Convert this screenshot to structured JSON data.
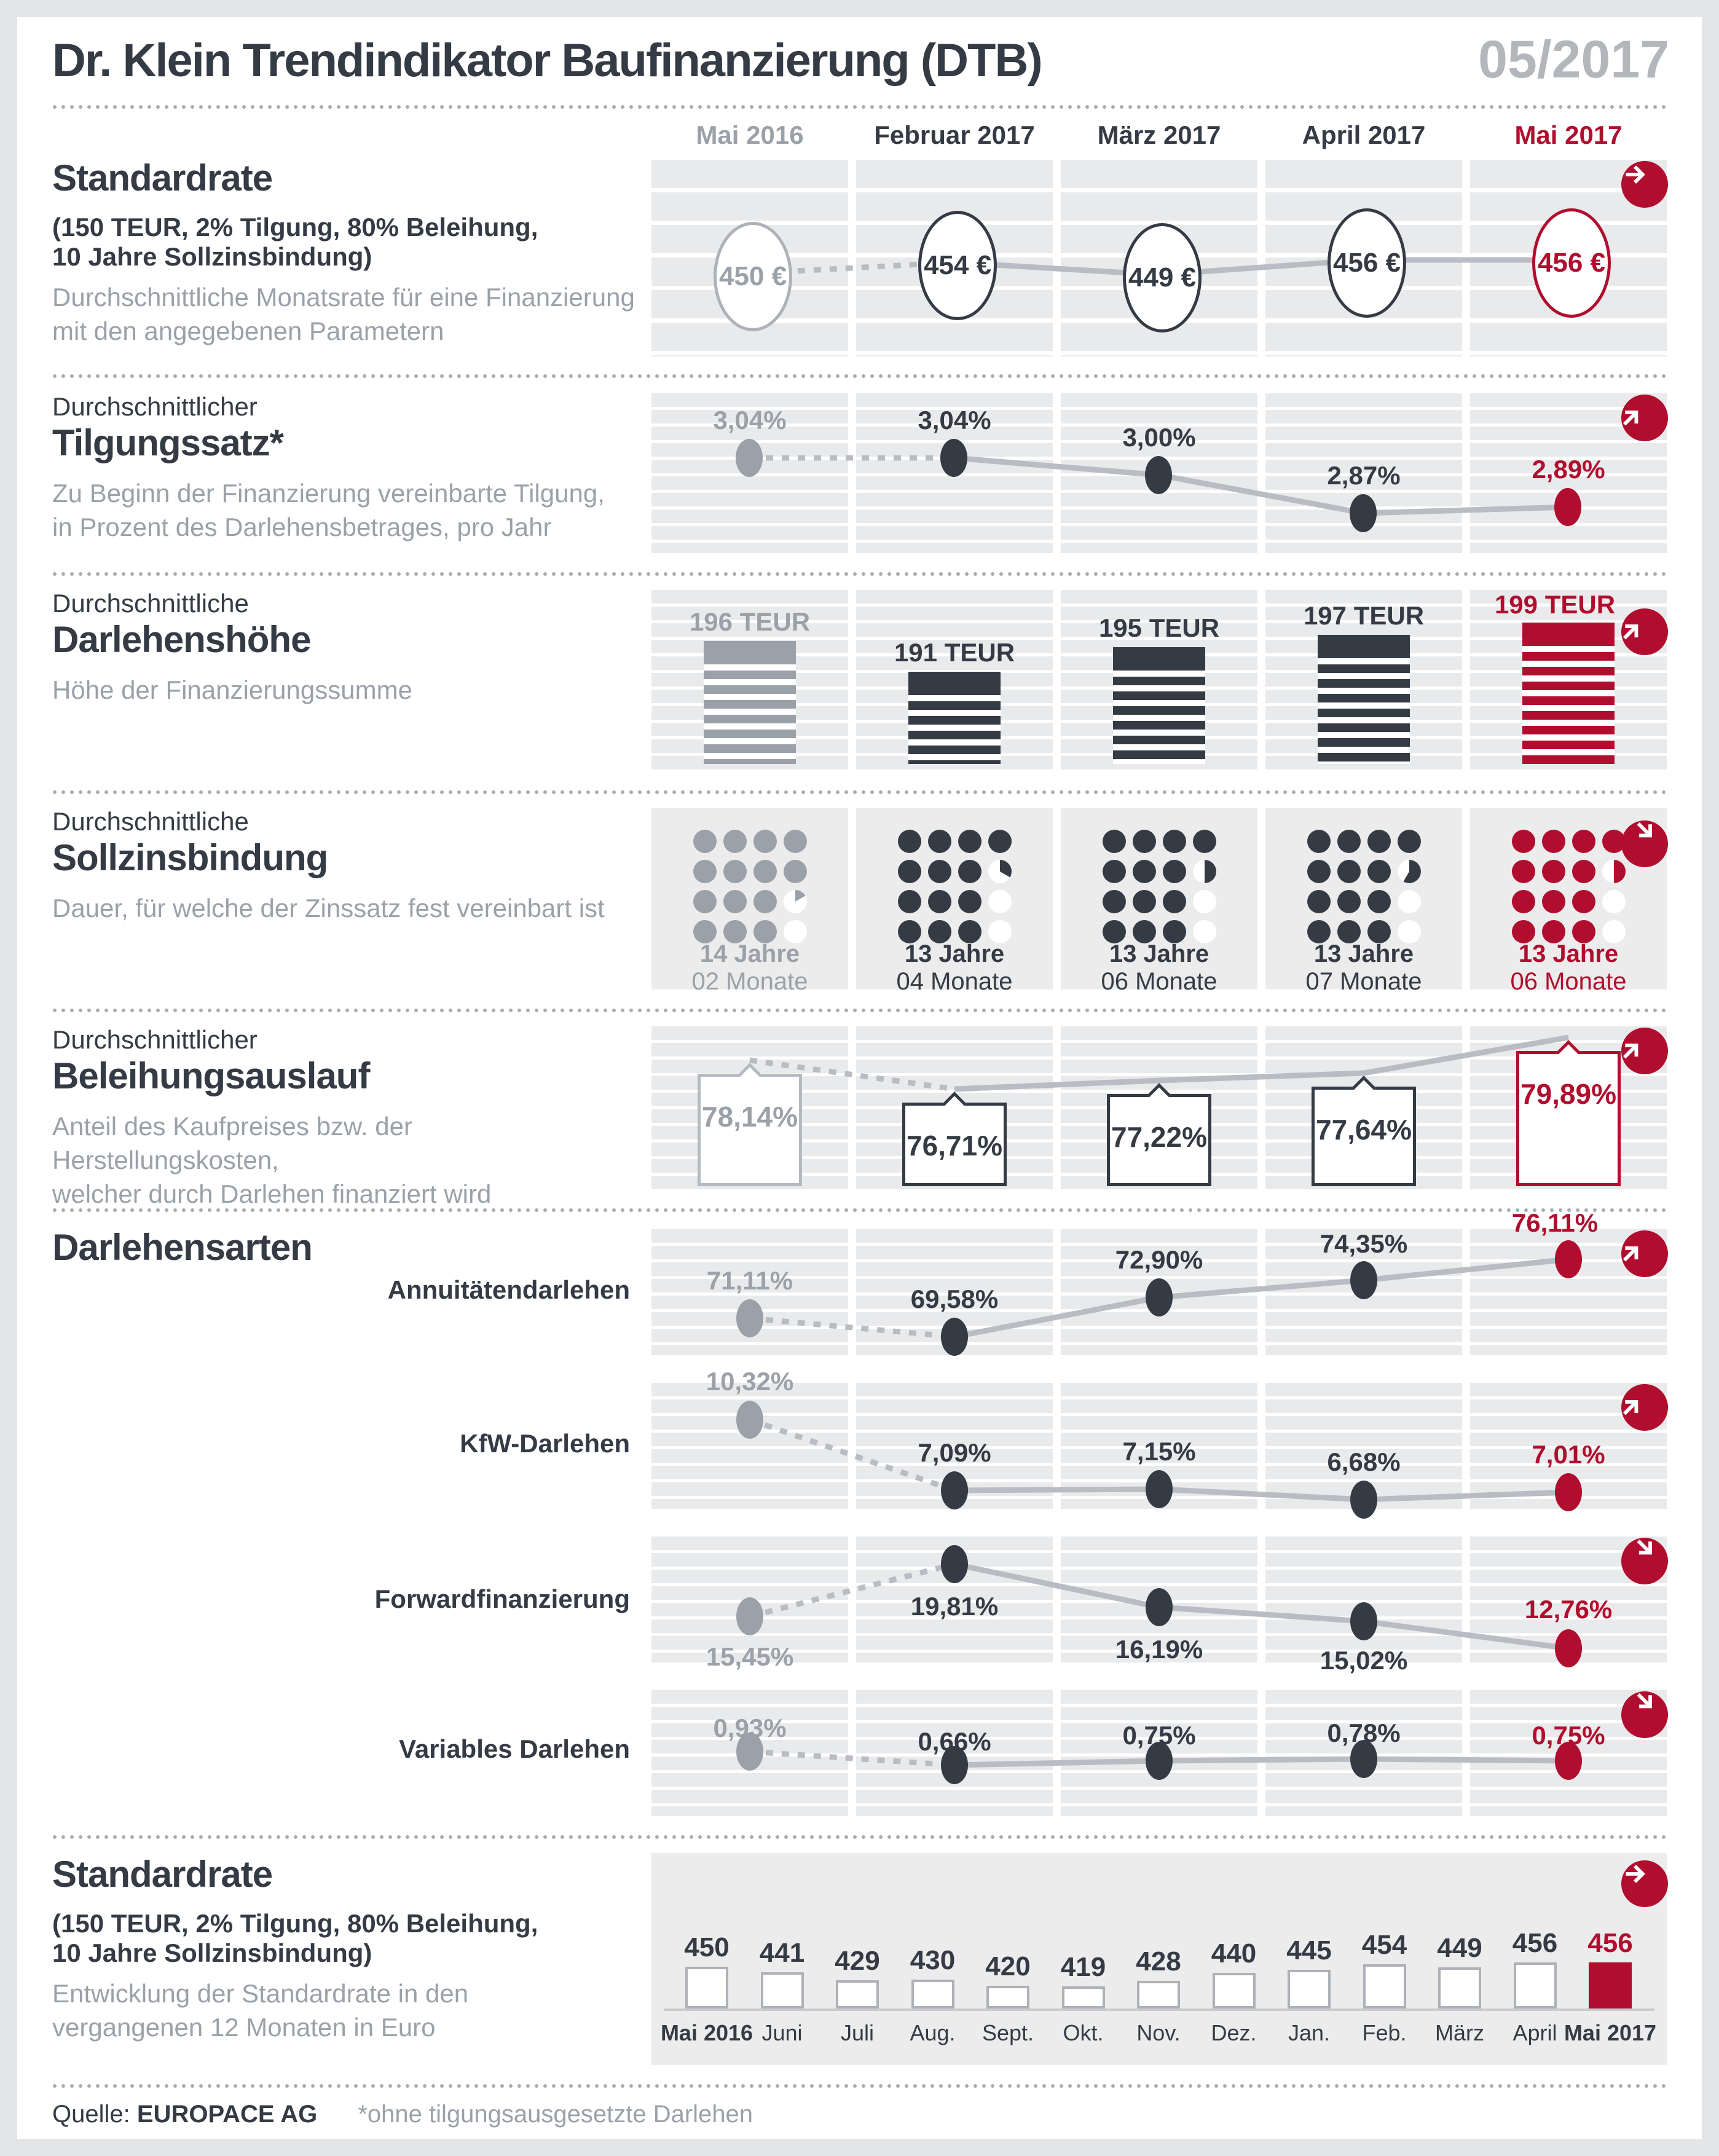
{
  "meta": {
    "title": "Dr. Klein Trendindikator Baufinanzierung (DTB)",
    "issue": "05/2017"
  },
  "columns": [
    "Mai 2016",
    "Februar 2017",
    "März 2017",
    "April 2017",
    "Mai 2017"
  ],
  "colors": {
    "accent": "#b10d2e",
    "dark": "#343b45",
    "gray": "#9ba1a8",
    "panel": "#e9eaeb"
  },
  "sections": {
    "standardrate": {
      "title": "Standardrate",
      "params1": "(150 TEUR, 2% Tilgung, 80% Beleihung,",
      "params2": "10 Jahre Sollzinsbindung)",
      "desc1": "Durchschnittliche Monatsrate für eine Finanzierung",
      "desc2": "mit den angegebenen Parametern",
      "values": [
        "450 €",
        "454 €",
        "449 €",
        "456 €",
        "456 €"
      ],
      "trend": "right"
    },
    "tilgungssatz": {
      "pre": "Durchschnittlicher",
      "title": "Tilgungssatz*",
      "desc1": "Zu Beginn der Finanzierung vereinbarte Tilgung,",
      "desc2": "in Prozent des Darlehensbetrages, pro Jahr",
      "values": [
        "3,04%",
        "3,04%",
        "3,00%",
        "2,87%",
        "2,89%"
      ],
      "trend": "up"
    },
    "darlehenshoehe": {
      "pre": "Durchschnittliche",
      "title": "Darlehenshöhe",
      "desc1": "Höhe der Finanzierungssumme",
      "values": [
        "196 TEUR",
        "191 TEUR",
        "195 TEUR",
        "197 TEUR",
        "199 TEUR"
      ],
      "trend": "up"
    },
    "sollzinsbindung": {
      "pre": "Durchschnittliche",
      "title": "Sollzinsbindung",
      "desc1": "Dauer, für welche der Zinssatz fest vereinbart ist",
      "values": [
        {
          "jahre": "14 Jahre",
          "monate": "02 Monate"
        },
        {
          "jahre": "13 Jahre",
          "monate": "04 Monate"
        },
        {
          "jahre": "13 Jahre",
          "monate": "06 Monate"
        },
        {
          "jahre": "13 Jahre",
          "monate": "07 Monate"
        },
        {
          "jahre": "13 Jahre",
          "monate": "06 Monate"
        }
      ],
      "trend": "down"
    },
    "beleihungsauslauf": {
      "pre": "Durchschnittlicher",
      "title": "Beleihungsauslauf",
      "desc1": "Anteil des Kaufpreises bzw. der Herstellungskosten,",
      "desc2": "welcher durch Darlehen finanziert wird",
      "values": [
        "78,14%",
        "76,71%",
        "77,22%",
        "77,64%",
        "79,89%"
      ],
      "trend": "up"
    },
    "darlehensarten": {
      "title": "Darlehensarten",
      "rows": [
        {
          "label": "Annuitätendarlehen",
          "values": [
            "71,11%",
            "69,58%",
            "72,90%",
            "74,35%",
            "76,11%"
          ],
          "trend": "up"
        },
        {
          "label": "KfW-Darlehen",
          "values": [
            "10,32%",
            "7,09%",
            "7,15%",
            "6,68%",
            "7,01%"
          ],
          "trend": "up"
        },
        {
          "label": "Forwardfinanzierung",
          "values": [
            "15,45%",
            "19,81%",
            "16,19%",
            "15,02%",
            "12,76%"
          ],
          "trend": "down"
        },
        {
          "label": "Variables Darlehen",
          "values": [
            "0,93%",
            "0,66%",
            "0,75%",
            "0,78%",
            "0,75%"
          ],
          "trend": "down"
        }
      ]
    },
    "verlauf": {
      "title": "Standardrate",
      "params1": "(150 TEUR, 2% Tilgung, 80% Beleihung,",
      "params2": "10 Jahre Sollzinsbindung)",
      "desc1": "Entwicklung der Standardrate in den",
      "desc2": "vergangenen 12 Monaten in Euro",
      "months": [
        "Mai 2016",
        "Juni",
        "Juli",
        "Aug.",
        "Sept.",
        "Okt.",
        "Nov.",
        "Dez.",
        "Jan.",
        "Feb.",
        "März",
        "April",
        "Mai 2017"
      ],
      "values": [
        450,
        441,
        429,
        430,
        420,
        419,
        428,
        440,
        445,
        454,
        449,
        456,
        456
      ],
      "trend": "right"
    }
  },
  "footer": {
    "source_label": "Quelle:",
    "source": "EUROPACE AG",
    "note": "*ohne tilgungsausgesetzte Darlehen"
  },
  "chart_data": [
    {
      "type": "line",
      "title": "Standardrate (Euro/Monat)",
      "categories": [
        "Mai 2016",
        "Februar 2017",
        "März 2017",
        "April 2017",
        "Mai 2017"
      ],
      "values": [
        450,
        454,
        449,
        456,
        456
      ],
      "unit": "€",
      "trend": "right"
    },
    {
      "type": "line",
      "title": "Durchschnittlicher Tilgungssatz",
      "categories": [
        "Mai 2016",
        "Februar 2017",
        "März 2017",
        "April 2017",
        "Mai 2017"
      ],
      "values": [
        3.04,
        3.04,
        3.0,
        2.87,
        2.89
      ],
      "unit": "%",
      "trend": "up"
    },
    {
      "type": "bar",
      "title": "Durchschnittliche Darlehenshöhe",
      "categories": [
        "Mai 2016",
        "Februar 2017",
        "März 2017",
        "April 2017",
        "Mai 2017"
      ],
      "values": [
        196,
        191,
        195,
        197,
        199
      ],
      "unit": "TEUR",
      "trend": "up"
    },
    {
      "type": "bar",
      "title": "Durchschnittliche Sollzinsbindung",
      "categories": [
        "Mai 2016",
        "Februar 2017",
        "März 2017",
        "April 2017",
        "Mai 2017"
      ],
      "values_months": [
        170,
        160,
        162,
        163,
        162
      ],
      "labels": [
        "14 Jahre 02 Monate",
        "13 Jahre 04 Monate",
        "13 Jahre 06 Monate",
        "13 Jahre 07 Monate",
        "13 Jahre 06 Monate"
      ],
      "trend": "down"
    },
    {
      "type": "line",
      "title": "Durchschnittlicher Beleihungsauslauf",
      "categories": [
        "Mai 2016",
        "Februar 2017",
        "März 2017",
        "April 2017",
        "Mai 2017"
      ],
      "values": [
        78.14,
        76.71,
        77.22,
        77.64,
        79.89
      ],
      "unit": "%",
      "trend": "up"
    },
    {
      "type": "line",
      "title": "Darlehensarten",
      "categories": [
        "Mai 2016",
        "Februar 2017",
        "März 2017",
        "April 2017",
        "Mai 2017"
      ],
      "unit": "%",
      "series": [
        {
          "name": "Annuitätendarlehen",
          "values": [
            71.11,
            69.58,
            72.9,
            74.35,
            76.11
          ]
        },
        {
          "name": "KfW-Darlehen",
          "values": [
            10.32,
            7.09,
            7.15,
            6.68,
            7.01
          ]
        },
        {
          "name": "Forwardfinanzierung",
          "values": [
            15.45,
            19.81,
            16.19,
            15.02,
            12.76
          ]
        },
        {
          "name": "Variables Darlehen",
          "values": [
            0.93,
            0.66,
            0.75,
            0.78,
            0.75
          ]
        }
      ]
    },
    {
      "type": "bar",
      "title": "Standardrate, vergangene 12 Monate (Euro)",
      "categories": [
        "Mai 2016",
        "Juni",
        "Juli",
        "Aug.",
        "Sept.",
        "Okt.",
        "Nov.",
        "Dez.",
        "Jan.",
        "Feb.",
        "März",
        "April",
        "Mai 2017"
      ],
      "values": [
        450,
        441,
        429,
        430,
        420,
        419,
        428,
        440,
        445,
        454,
        449,
        456,
        456
      ],
      "ylim": [
        385,
        470
      ]
    }
  ]
}
